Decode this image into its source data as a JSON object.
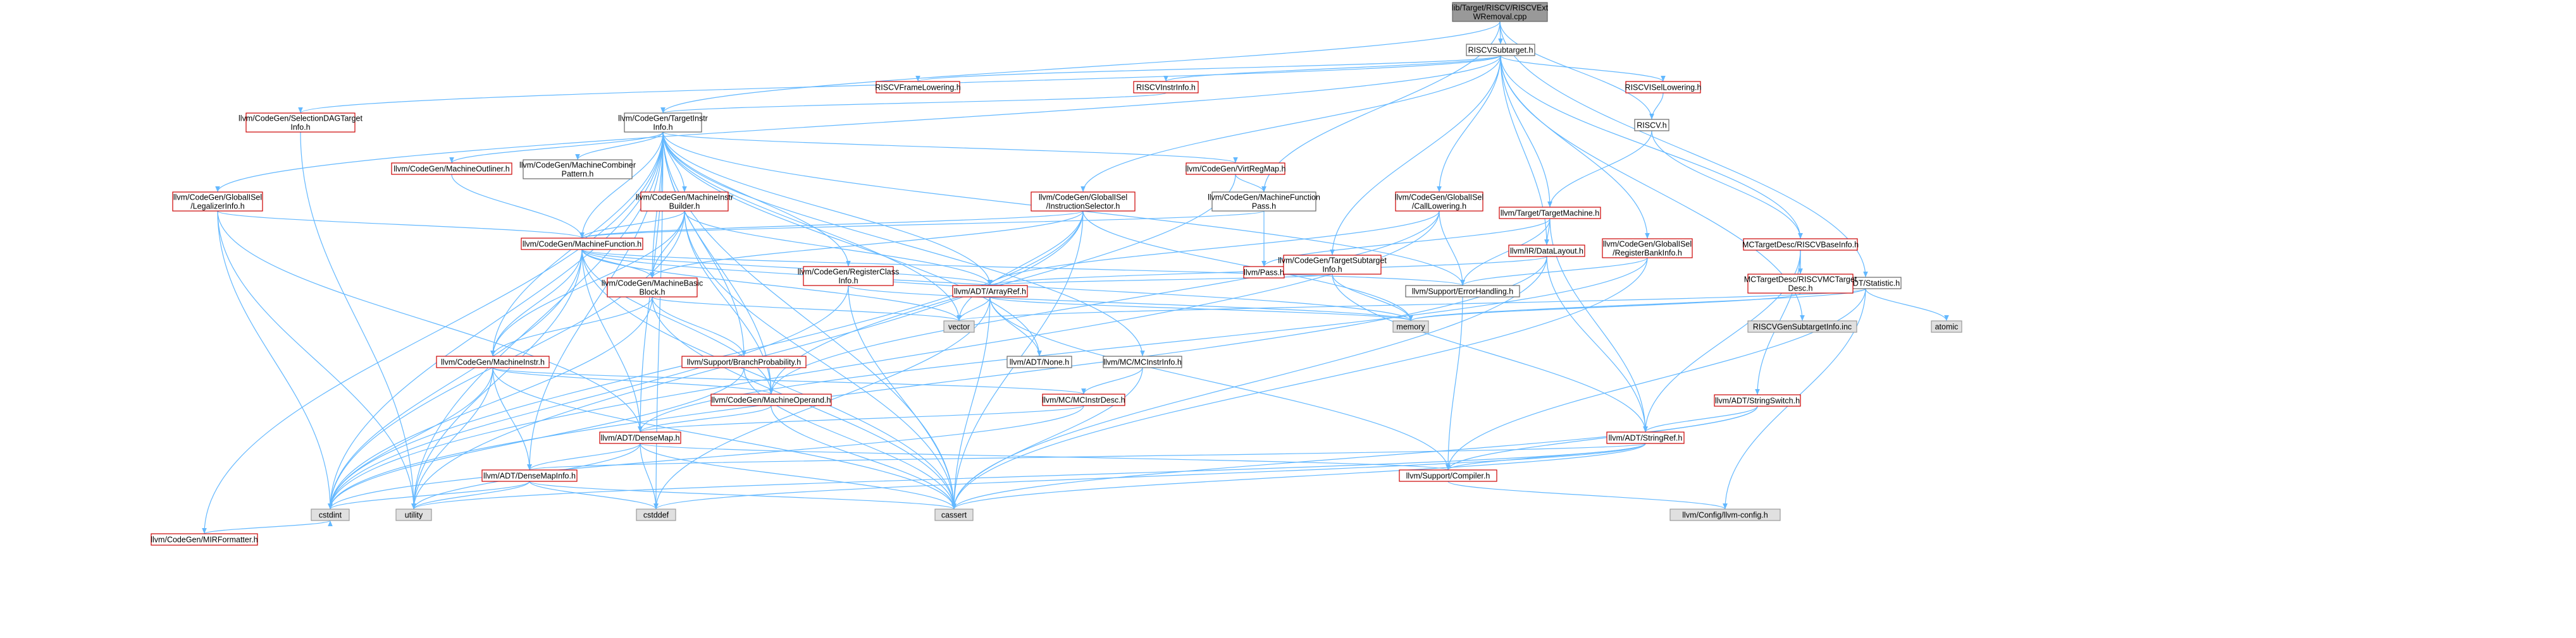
{
  "nodes": {
    "root": [
      "lib/Target/RISCV/RISCVExt",
      "WRemoval.cpp"
    ],
    "subtarget": [
      "RISCVSubtarget.h"
    ],
    "frame_lowering": [
      "RISCVFrameLowering.h"
    ],
    "instr_info": [
      "RISCVInstrInfo.h"
    ],
    "isel_lowering": [
      "RISCVISelLowering.h"
    ],
    "riscv_h": [
      "RISCV.h"
    ],
    "statistic": [
      "llvm/ADT/Statistic.h"
    ],
    "sdag_target_info": [
      "llvm/CodeGen/SelectionDAGTarget",
      "Info.h"
    ],
    "target_instr_info": [
      "llvm/CodeGen/TargetInstr",
      "Info.h"
    ],
    "mir_formatter": [
      "llvm/CodeGen/MIRFormatter.h"
    ],
    "legalizer_info": [
      "llvm/CodeGen/GlobalISel",
      "/LegalizerInfo.h"
    ],
    "machine_outliner": [
      "llvm/CodeGen/MachineOutliner.h"
    ],
    "machine_combiner": [
      "llvm/CodeGen/MachineCombiner",
      "Pattern.h"
    ],
    "mi_builder": [
      "llvm/CodeGen/MachineInstr",
      "Builder.h"
    ],
    "virt_reg_map": [
      "llvm/CodeGen/VirtRegMap.h"
    ],
    "inst_selector": [
      "llvm/CodeGen/GlobalISel",
      "/InstructionSelector.h"
    ],
    "mf_pass": [
      "llvm/CodeGen/MachineFunction",
      "Pass.h"
    ],
    "call_lowering": [
      "llvm/CodeGen/GlobalISel",
      "/CallLowering.h"
    ],
    "target_machine": [
      "llvm/Target/TargetMachine.h"
    ],
    "reg_bank_info": [
      "llvm/CodeGen/GlobalISel",
      "/RegisterBankInfo.h"
    ],
    "base_info": [
      "MCTargetDesc/RISCVBaseInfo.h"
    ],
    "machine_function": [
      "llvm/CodeGen/MachineFunction.h"
    ],
    "reg_class_info": [
      "llvm/CodeGen/RegisterClass",
      "Info.h"
    ],
    "pass_h": [
      "llvm/Pass.h"
    ],
    "tsi": [
      "llvm/CodeGen/TargetSubtarget",
      "Info.h"
    ],
    "data_layout": [
      "llvm/IR/DataLayout.h"
    ],
    "mc_target_desc": [
      "MCTargetDesc/RISCVMCTarget",
      "Desc.h"
    ],
    "mbb": [
      "llvm/CodeGen/MachineBasic",
      "Block.h"
    ],
    "array_ref": [
      "llvm/ADT/ArrayRef.h"
    ],
    "error_handling": [
      "llvm/Support/ErrorHandling.h"
    ],
    "vector": [
      "vector"
    ],
    "memory": [
      "memory"
    ],
    "gen_subtarget_info": [
      "RISCVGenSubtargetInfo.inc"
    ],
    "atomic": [
      "atomic"
    ],
    "machine_instr": [
      "llvm/CodeGen/MachineInstr.h"
    ],
    "branch_prob": [
      "llvm/Support/BranchProbability.h"
    ],
    "none_h": [
      "llvm/ADT/None.h"
    ],
    "mc_instr_info": [
      "llvm/MC/MCInstrInfo.h"
    ],
    "string_switch": [
      "llvm/ADT/StringSwitch.h"
    ],
    "machine_operand": [
      "llvm/CodeGen/MachineOperand.h"
    ],
    "mc_instr_desc": [
      "llvm/MC/MCInstrDesc.h"
    ],
    "dense_map": [
      "llvm/ADT/DenseMap.h"
    ],
    "string_ref": [
      "llvm/ADT/StringRef.h"
    ],
    "dense_map_info": [
      "llvm/ADT/DenseMapInfo.h"
    ],
    "compiler": [
      "llvm/Support/Compiler.h"
    ],
    "cstdint": [
      "cstdint"
    ],
    "utility": [
      "utility"
    ],
    "cstddef": [
      "cstddef"
    ],
    "cassert": [
      "cassert"
    ],
    "llvm_config": [
      "llvm/Config/llvm-config.h"
    ]
  },
  "colors": {
    "edge": "#63b8ff",
    "red_border": "#cc0000",
    "gray_border": "#666666",
    "root_fill": "#999999",
    "external_fill": "#e0e0e0"
  }
}
